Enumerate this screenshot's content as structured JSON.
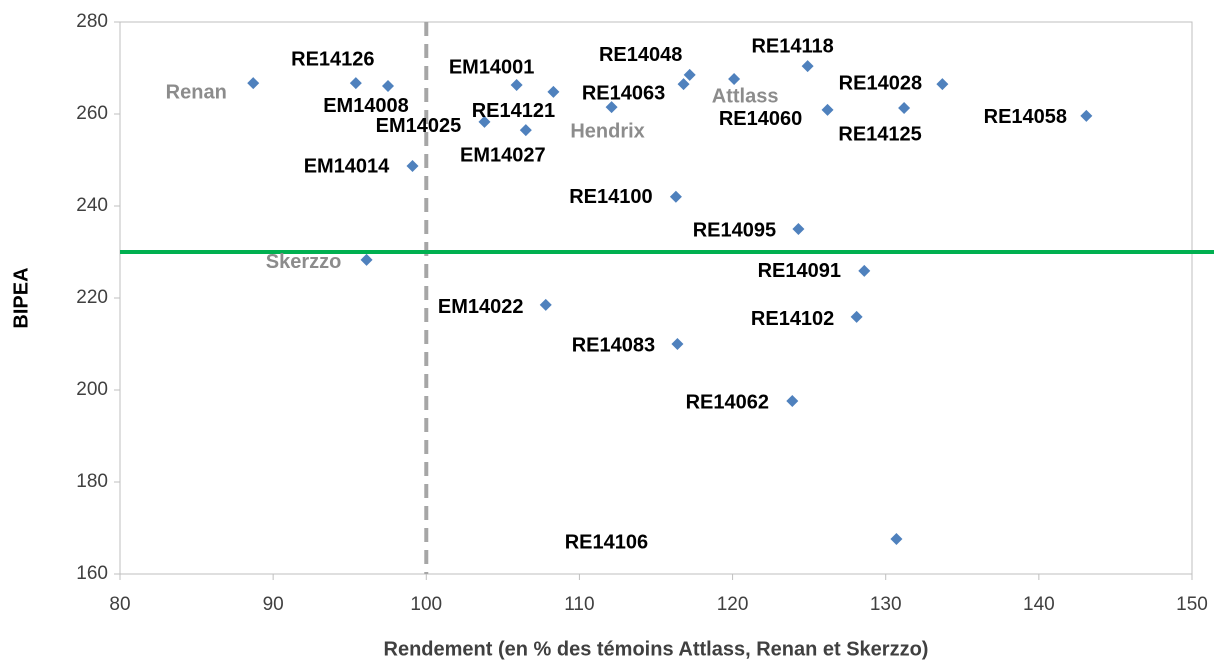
{
  "chart_data": {
    "type": "scatter",
    "x_label": "Rendement (en % des témoins Attlass, Renan et Skerzzo)",
    "y_label": "BIPEA",
    "xlim": [
      80,
      150
    ],
    "xticks": [
      80,
      90,
      100,
      110,
      120,
      130,
      140,
      150
    ],
    "ylim": [
      160,
      280
    ],
    "yticks": [
      160,
      180,
      200,
      220,
      240,
      260,
      280
    ],
    "color": "#4f81bd",
    "labels": [
      "Renan",
      "RE14126",
      "EM14008",
      "EM14025",
      "EM14014",
      "Skerzzo",
      "EM14001",
      "RE14121",
      "EM14027",
      "Hendrix",
      "RE14063",
      "RE14048",
      "Attlass",
      "RE14118",
      "RE14028",
      "RE14060",
      "RE14125",
      "RE14058",
      "RE14100",
      "RE14095",
      "RE14091",
      "EM14022",
      "RE14102",
      "RE14083",
      "RE14062",
      "RE14106"
    ],
    "label_colors": [
      "#8c8c8c",
      "#000000",
      "#000000",
      "#000000",
      "#000000",
      "#8c8c8c",
      "#000000",
      "#000000",
      "#000000",
      "#8c8c8c",
      "#000000",
      "#000000",
      "#8c8c8c",
      "#000000",
      "#000000",
      "#000000",
      "#000000",
      "#000000",
      "#000000",
      "#000000",
      "#000000",
      "#000000",
      "#000000",
      "#000000",
      "#000000",
      "#000000"
    ],
    "x": [
      88.7,
      95.4,
      97.5,
      103.8,
      99.1,
      96.1,
      105.9,
      108.3,
      106.5,
      112.1,
      116.8,
      117.2,
      120.1,
      124.9,
      133.7,
      126.2,
      131.2,
      143.1,
      116.3,
      124.3,
      128.6,
      107.8,
      128.1,
      116.4,
      123.9,
      130.7
    ],
    "values": [
      266.7,
      266.7,
      266.1,
      258.3,
      248.7,
      228.3,
      266.3,
      264.8,
      256.5,
      261.5,
      266.5,
      268.5,
      267.6,
      270.4,
      266.5,
      260.9,
      261.3,
      259.6,
      242.0,
      235.0,
      225.9,
      218.5,
      215.9,
      210.0,
      197.6,
      167.6
    ],
    "x_reference": {
      "value": 100,
      "color": "#a6a6a6"
    },
    "y_reference": {
      "value": 230,
      "color": "#00b050"
    }
  }
}
